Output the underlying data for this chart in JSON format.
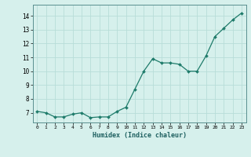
{
  "x": [
    0,
    1,
    2,
    3,
    4,
    5,
    6,
    7,
    8,
    9,
    10,
    11,
    12,
    13,
    14,
    15,
    16,
    17,
    18,
    19,
    20,
    21,
    22,
    23
  ],
  "y": [
    7.1,
    7.0,
    6.7,
    6.7,
    6.9,
    7.0,
    6.65,
    6.7,
    6.7,
    7.1,
    7.4,
    8.7,
    10.0,
    10.9,
    10.6,
    10.6,
    10.5,
    10.0,
    10.0,
    11.1,
    12.5,
    13.1,
    13.7,
    14.2
  ],
  "xlabel": "Humidex (Indice chaleur)",
  "ylim": [
    6.3,
    14.8
  ],
  "xlim": [
    -0.5,
    23.5
  ],
  "yticks": [
    7,
    8,
    9,
    10,
    11,
    12,
    13,
    14
  ],
  "xticks": [
    0,
    1,
    2,
    3,
    4,
    5,
    6,
    7,
    8,
    9,
    10,
    11,
    12,
    13,
    14,
    15,
    16,
    17,
    18,
    19,
    20,
    21,
    22,
    23
  ],
  "line_color": "#1e7b6a",
  "marker_color": "#1e7b6a",
  "bg_color": "#d6f0ec",
  "grid_color": "#b8ddd8",
  "axis_bg": "#d6f0ec",
  "xlabel_color": "#1e6060"
}
